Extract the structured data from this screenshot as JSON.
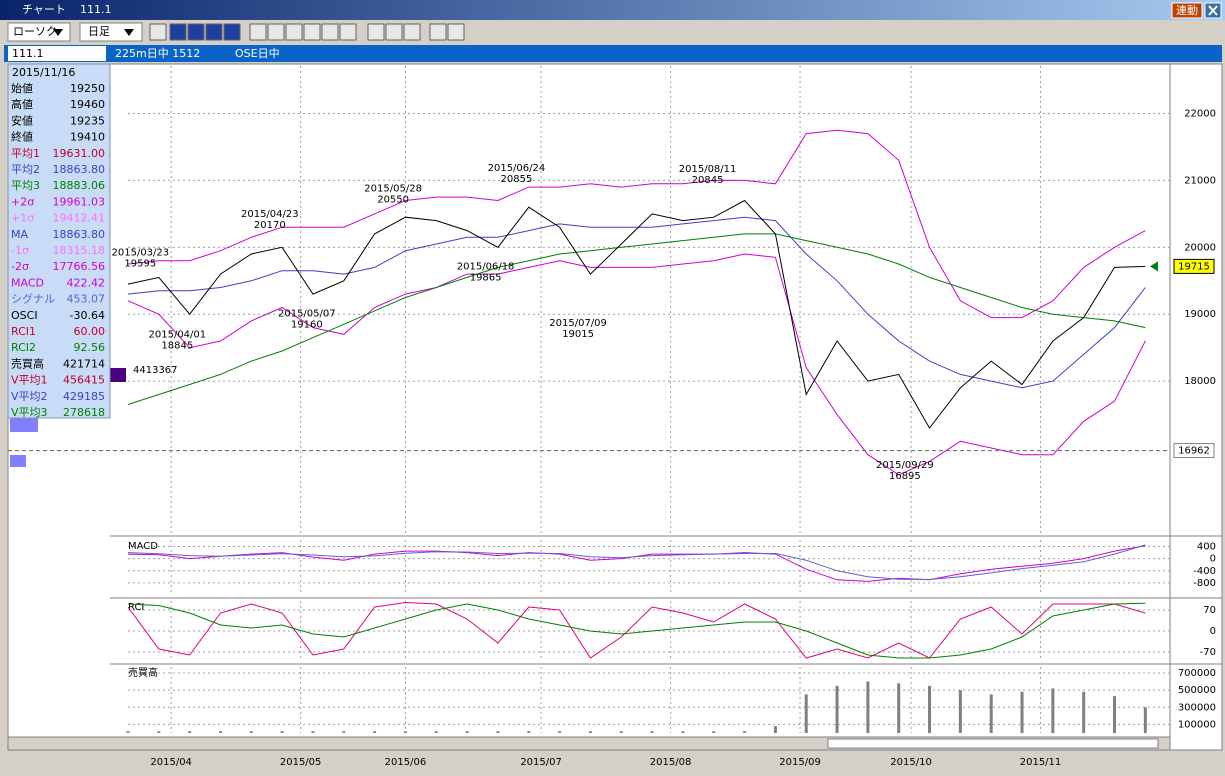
{
  "window": {
    "title": "チャート",
    "code": "111.1",
    "link_button": "連動"
  },
  "toolbar": {
    "chart_style": "ローソク",
    "period": "日足"
  },
  "info_bar": {
    "code": "111.1",
    "item1": "225m日中 1512",
    "item2": "OSE日中"
  },
  "volume_profile": {
    "label": "4413367"
  },
  "info_panel": {
    "date": "2015/11/16",
    "rows": [
      {
        "label": "始値",
        "value": "19250",
        "color": "#000000"
      },
      {
        "label": "高値",
        "value": "19460",
        "color": "#000000"
      },
      {
        "label": "安値",
        "value": "19235",
        "color": "#000000"
      },
      {
        "label": "終値",
        "value": "19410",
        "color": "#000000"
      },
      {
        "label": "平均1",
        "value": "19631.00",
        "color": "#c00030"
      },
      {
        "label": "平均2",
        "value": "18863.80",
        "color": "#4040c0"
      },
      {
        "label": "平均3",
        "value": "18883.06",
        "color": "#008000"
      },
      {
        "label": "+2σ",
        "value": "19961.03",
        "color": "#d000d0"
      },
      {
        "label": "+1σ",
        "value": "19412.41",
        "color": "#ff70ff"
      },
      {
        "label": "MA",
        "value": "18863.80",
        "color": "#4040c0"
      },
      {
        "label": "-1σ",
        "value": "18315.18",
        "color": "#ff70ff"
      },
      {
        "label": "-2σ",
        "value": "17766.56",
        "color": "#d000d0"
      },
      {
        "label": "MACD",
        "value": "422.42",
        "color": "#d000d0"
      },
      {
        "label": "シグナル",
        "value": "453.07",
        "color": "#6060d0"
      },
      {
        "label": "OSCI",
        "value": "-30.64",
        "color": "#000000"
      },
      {
        "label": "RCI1",
        "value": "60.00",
        "color": "#c00030"
      },
      {
        "label": "RCI2",
        "value": "92.56",
        "color": "#008000"
      },
      {
        "label": "売買高",
        "value": "421714",
        "color": "#000000"
      },
      {
        "label": "V平均1",
        "value": "456415",
        "color": "#c00030"
      },
      {
        "label": "V平均2",
        "value": "429185",
        "color": "#4040c0"
      },
      {
        "label": "V平均3",
        "value": "278618",
        "color": "#008000"
      }
    ]
  },
  "chart_data": [
    {
      "type": "line",
      "xlim": [
        0,
        169
      ],
      "ylim": [
        15730,
        22710
      ],
      "yticks": [
        18000,
        19000,
        20000,
        21000,
        22000
      ],
      "xticks": [
        {
          "value": 7,
          "label": "2015/04"
        },
        {
          "value": 28,
          "label": "2015/05"
        },
        {
          "value": 45,
          "label": "2015/06"
        },
        {
          "value": 67,
          "label": "2015/07"
        },
        {
          "value": 88,
          "label": "2015/08"
        },
        {
          "value": 109,
          "label": "2015/09"
        },
        {
          "value": 127,
          "label": "2015/10"
        },
        {
          "value": 148,
          "label": "2015/11"
        }
      ],
      "grid": true,
      "x": [
        0,
        5,
        10,
        15,
        20,
        25,
        30,
        35,
        40,
        45,
        50,
        55,
        60,
        65,
        70,
        75,
        80,
        85,
        90,
        95,
        100,
        105,
        110,
        115,
        120,
        125,
        130,
        135,
        140,
        145,
        150,
        155,
        160,
        165
      ],
      "series": [
        {
          "color": "#d000d0",
          "values": [
            19750,
            19800,
            19800,
            19950,
            20150,
            20300,
            20300,
            20300,
            20500,
            20700,
            20750,
            20750,
            20700,
            20900,
            20900,
            20950,
            20900,
            20950,
            20950,
            21000,
            21000,
            20950,
            21700,
            21750,
            21700,
            21300,
            20000,
            19200,
            18950,
            18950,
            19200,
            19700,
            20000,
            20250
          ]
        },
        {
          "color": "#d000d0",
          "values": [
            19200,
            19000,
            18500,
            18600,
            18900,
            19100,
            18800,
            18700,
            19100,
            19300,
            19400,
            19600,
            19600,
            19700,
            19800,
            19700,
            19700,
            19700,
            19750,
            19800,
            19900,
            19850,
            18200,
            17500,
            16900,
            16600,
            16800,
            17100,
            17000,
            16900,
            16900,
            17400,
            17700,
            18600
          ]
        },
        {
          "color": "#4040c0",
          "values": [
            19300,
            19350,
            19350,
            19400,
            19500,
            19650,
            19650,
            19600,
            19700,
            19950,
            20050,
            20150,
            20150,
            20250,
            20350,
            20300,
            20300,
            20300,
            20350,
            20400,
            20450,
            20400,
            19900,
            19500,
            19000,
            18600,
            18300,
            18100,
            18000,
            17900,
            18000,
            18400,
            18800,
            19400
          ]
        },
        {
          "color": "#008000",
          "values": [
            17650,
            17800,
            17950,
            18100,
            18300,
            18450,
            18650,
            18850,
            19050,
            19250,
            19400,
            19550,
            19700,
            19800,
            19900,
            19950,
            20000,
            20050,
            20100,
            20150,
            20200,
            20200,
            20100,
            20000,
            19900,
            19750,
            19550,
            19400,
            19250,
            19100,
            19000,
            18950,
            18900,
            18800
          ]
        },
        {
          "color": "#000000",
          "values": [
            19450,
            19550,
            19000,
            19600,
            19900,
            20000,
            19300,
            19500,
            20200,
            20450,
            20400,
            20250,
            20000,
            20600,
            20300,
            19600,
            20050,
            20500,
            20400,
            20450,
            20700,
            20200,
            17800,
            18600,
            18000,
            18100,
            17300,
            17900,
            18300,
            17950,
            18600,
            18950,
            19700,
            19715
          ]
        }
      ],
      "annotations": [
        {
          "date": "2015/03/23",
          "value": 19595,
          "x": 2,
          "pos": "above"
        },
        {
          "date": "2015/04/01",
          "value": 18845,
          "x": 8,
          "pos": "below"
        },
        {
          "date": "2015/04/23",
          "value": 20170,
          "x": 23,
          "pos": "above"
        },
        {
          "date": "2015/05/07",
          "value": 19160,
          "x": 29,
          "pos": "below"
        },
        {
          "date": "2015/05/28",
          "value": 20550,
          "x": 43,
          "pos": "above"
        },
        {
          "date": "2015/06/18",
          "value": 19865,
          "x": 58,
          "pos": "below"
        },
        {
          "date": "2015/06/24",
          "value": 20855,
          "x": 63,
          "pos": "above"
        },
        {
          "date": "2015/07/09",
          "value": 19015,
          "x": 73,
          "pos": "below"
        },
        {
          "date": "2015/08/11",
          "value": 20845,
          "x": 94,
          "pos": "above"
        },
        {
          "date": "2015/09/29",
          "value": 16895,
          "x": 126,
          "pos": "below"
        }
      ],
      "markers": [
        {
          "value": 19715,
          "style": "current"
        },
        {
          "value": 16962,
          "style": "level"
        }
      ]
    },
    {
      "type": "line",
      "title": "MACD",
      "xlim": [
        0,
        169
      ],
      "ylim": [
        -1200,
        615
      ],
      "yticks": [
        400,
        0,
        -400,
        -800
      ],
      "x": [
        0,
        5,
        10,
        15,
        20,
        25,
        30,
        35,
        40,
        45,
        50,
        55,
        60,
        65,
        70,
        75,
        80,
        85,
        90,
        95,
        100,
        105,
        110,
        115,
        120,
        125,
        130,
        135,
        140,
        145,
        150,
        155,
        160,
        165
      ],
      "series": [
        {
          "color": "#d000d0",
          "values": [
            150,
            130,
            0,
            80,
            150,
            200,
            50,
            -50,
            150,
            250,
            250,
            200,
            100,
            200,
            150,
            -50,
            0,
            150,
            150,
            150,
            200,
            150,
            -350,
            -700,
            -750,
            -650,
            -700,
            -500,
            -350,
            -250,
            -150,
            0,
            250,
            422
          ]
        },
        {
          "color": "#6060d0",
          "values": [
            200,
            160,
            100,
            80,
            120,
            160,
            120,
            60,
            90,
            180,
            230,
            220,
            170,
            180,
            170,
            60,
            30,
            100,
            130,
            150,
            170,
            170,
            -50,
            -400,
            -600,
            -680,
            -690,
            -600,
            -470,
            -330,
            -220,
            -100,
            150,
            453
          ]
        }
      ]
    },
    {
      "type": "line",
      "title": "RCI",
      "xlim": [
        0,
        169
      ],
      "ylim": [
        -100,
        100
      ],
      "yticks": [
        70,
        0,
        -70
      ],
      "x": [
        0,
        5,
        10,
        15,
        20,
        25,
        30,
        35,
        40,
        45,
        50,
        55,
        60,
        65,
        70,
        75,
        80,
        85,
        90,
        95,
        100,
        105,
        110,
        115,
        120,
        125,
        130,
        135,
        140,
        145,
        150,
        155,
        160,
        165
      ],
      "series": [
        {
          "color": "#e00080",
          "values": [
            80,
            -60,
            -80,
            60,
            90,
            60,
            -80,
            -60,
            80,
            95,
            90,
            40,
            -40,
            80,
            70,
            -90,
            -20,
            80,
            60,
            30,
            90,
            40,
            -90,
            -60,
            -90,
            -40,
            -90,
            40,
            80,
            -10,
            90,
            90,
            90,
            60
          ]
        },
        {
          "color": "#008000",
          "values": [
            90,
            85,
            60,
            20,
            10,
            20,
            -10,
            -20,
            10,
            40,
            70,
            90,
            70,
            40,
            20,
            0,
            -10,
            0,
            10,
            20,
            30,
            30,
            0,
            -40,
            -80,
            -90,
            -90,
            -80,
            -60,
            -20,
            50,
            70,
            90,
            92.56
          ]
        }
      ]
    },
    {
      "type": "bar",
      "title": "売買高",
      "xlim": [
        0,
        169
      ],
      "ylim": [
        0,
        770000
      ],
      "yticks": [
        700000,
        500000,
        300000,
        100000
      ],
      "color": "#808080",
      "x": [
        0,
        5,
        10,
        15,
        20,
        25,
        30,
        35,
        40,
        45,
        50,
        55,
        60,
        65,
        70,
        75,
        80,
        85,
        90,
        95,
        100,
        105,
        110,
        115,
        120,
        125,
        130,
        135,
        140,
        145,
        150,
        155,
        160,
        165
      ],
      "values": [
        20000,
        20000,
        20000,
        20000,
        20000,
        20000,
        20000,
        20000,
        20000,
        20000,
        20000,
        20000,
        20000,
        20000,
        20000,
        20000,
        20000,
        20000,
        20000,
        20000,
        20000,
        80000,
        450000,
        550000,
        600000,
        580000,
        550000,
        500000,
        450000,
        480000,
        520000,
        480000,
        430000,
        300000
      ]
    }
  ]
}
